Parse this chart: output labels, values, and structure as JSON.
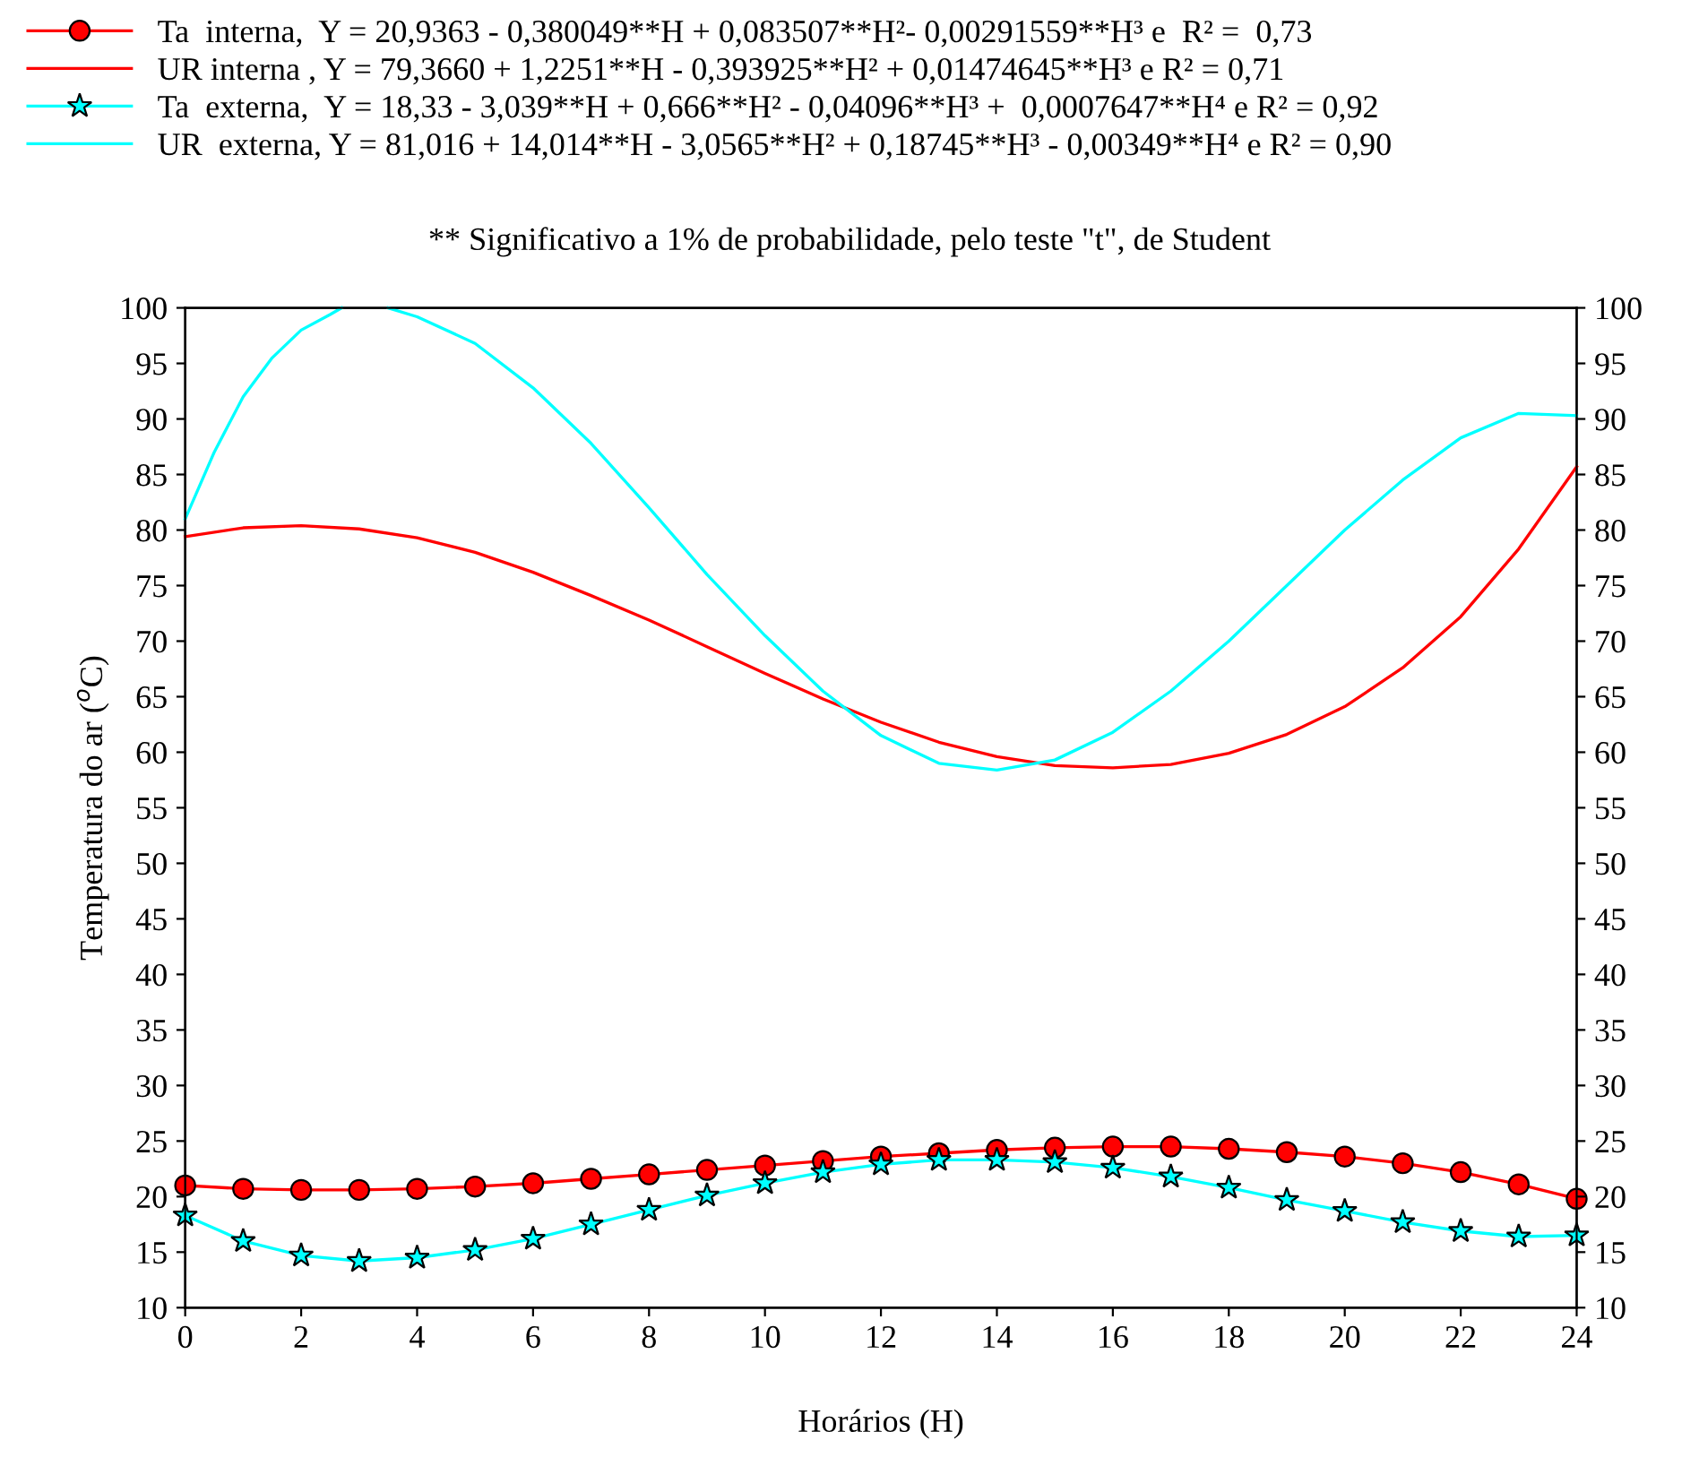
{
  "chart_data": {
    "type": "line",
    "xlabel": "Horários (H)",
    "ylabel": "Temperatura do ar ($^{o}$C)",
    "annotations": [
      "** Significativo a 1% de probabilidade, pelo teste \"t\", de Student"
    ],
    "x": [
      0,
      1,
      2,
      3,
      4,
      5,
      6,
      7,
      8,
      9,
      10,
      11,
      12,
      13,
      14,
      15,
      16,
      17,
      18,
      19,
      20,
      21,
      22,
      23,
      24
    ],
    "series": [
      {
        "name": "Ta  interna,  Y = 20,9363 - 0,380049**H + 0,083507**H²- 0,00291559**H³ e  R² =  0,73",
        "color": "#ff0000",
        "marker": "circle",
        "values": [
          21.0,
          20.7,
          20.6,
          20.6,
          20.7,
          20.9,
          21.2,
          21.6,
          22.0,
          22.4,
          22.8,
          23.2,
          23.6,
          23.9,
          24.2,
          24.4,
          24.5,
          24.5,
          24.3,
          24.0,
          23.6,
          23.0,
          22.2,
          21.1,
          19.8
        ]
      },
      {
        "name": "UR interna , Y = 79,3660 + 1,2251**H - 0,393925**H² + 0,01474645**H³ e R² = 0,71",
        "color": "#ff0000",
        "marker": "none",
        "values": [
          79.4,
          80.2,
          80.4,
          80.1,
          79.3,
          78.0,
          76.2,
          74.1,
          71.9,
          69.5,
          67.1,
          64.8,
          62.7,
          60.9,
          59.6,
          58.8,
          58.6,
          58.9,
          59.9,
          61.6,
          64.1,
          67.6,
          72.2,
          78.3,
          85.7
        ]
      },
      {
        "name": "Ta  externa,  Y = 18,33 - 3,039**H + 0,666**H² - 0,04096**H³ +  0,0007647**H⁴ e R² = 0,92",
        "color": "#00ffff",
        "marker": "star",
        "values": [
          18.3,
          16.0,
          14.7,
          14.2,
          14.5,
          15.2,
          16.2,
          17.5,
          18.8,
          20.1,
          21.2,
          22.2,
          22.9,
          23.3,
          23.3,
          23.1,
          22.6,
          21.8,
          20.8,
          19.7,
          18.7,
          17.7,
          16.9,
          16.4,
          16.5
        ]
      },
      {
        "name": "UR  externa, Y = 81,016 + 14,014**H - 3,0565**H² + 0,18745**H³ - 0,00349**H⁴ e R² = 0,90",
        "color": "#00ffff",
        "marker": "none",
        "x": [
          0,
          0.5,
          1,
          1.5,
          2,
          2.5,
          2.7,
          3,
          3.5,
          4,
          5,
          6,
          7,
          8,
          9,
          10,
          11,
          12,
          13,
          14,
          15,
          16,
          17,
          18,
          19,
          20,
          21,
          22,
          23,
          24
        ],
        "values": [
          81.0,
          87.0,
          92.0,
          95.5,
          98.0,
          99.4,
          100,
          null,
          100,
          99.2,
          96.8,
          92.8,
          87.8,
          82.0,
          76.0,
          70.5,
          65.5,
          61.5,
          59.0,
          58.4,
          59.3,
          61.8,
          65.5,
          70.0,
          75.0,
          80.0,
          84.5,
          88.3,
          90.5,
          90.3
        ]
      }
    ],
    "xlim": [
      0,
      24
    ],
    "xticks": [
      0,
      2,
      4,
      6,
      8,
      10,
      12,
      14,
      16,
      18,
      20,
      22,
      24
    ],
    "ylim": [
      10,
      100
    ],
    "yticks": [
      10,
      15,
      20,
      25,
      30,
      35,
      40,
      45,
      50,
      55,
      60,
      65,
      70,
      75,
      80,
      85,
      90,
      95,
      100
    ],
    "y2lim": [
      10,
      100
    ],
    "y2ticks": [
      10,
      15,
      20,
      25,
      30,
      35,
      40,
      45,
      50,
      55,
      60,
      65,
      70,
      75,
      80,
      85,
      90,
      95,
      100
    ],
    "legend": "top",
    "grid": false,
    "line_style": "solid"
  }
}
